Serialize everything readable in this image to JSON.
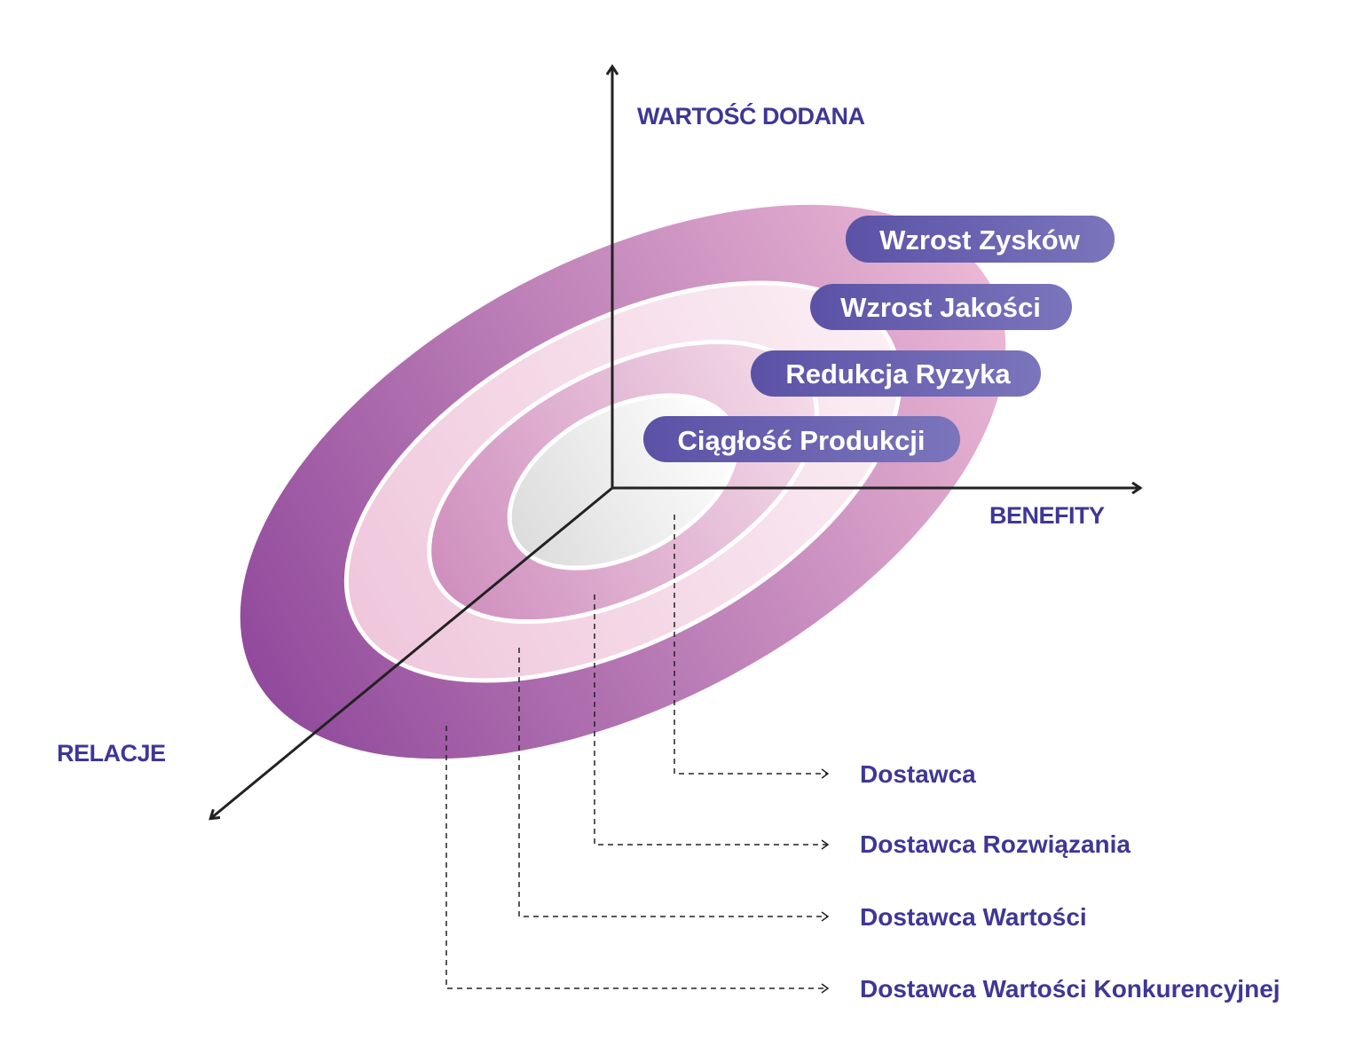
{
  "axes": {
    "y": "WARTOŚĆ DODANA",
    "x": "BENEFITY",
    "z": "RELACJE"
  },
  "benefits": [
    "Wzrost Zysków",
    "Wzrost Jakości",
    "Redukcja Ryzyka",
    "Ciągłość Produkcji"
  ],
  "levels": [
    "Dostawca",
    "Dostawca Rozwiązania",
    "Dostawca Wartości",
    "Dostawca Wartości Konkurencyjnej"
  ]
}
